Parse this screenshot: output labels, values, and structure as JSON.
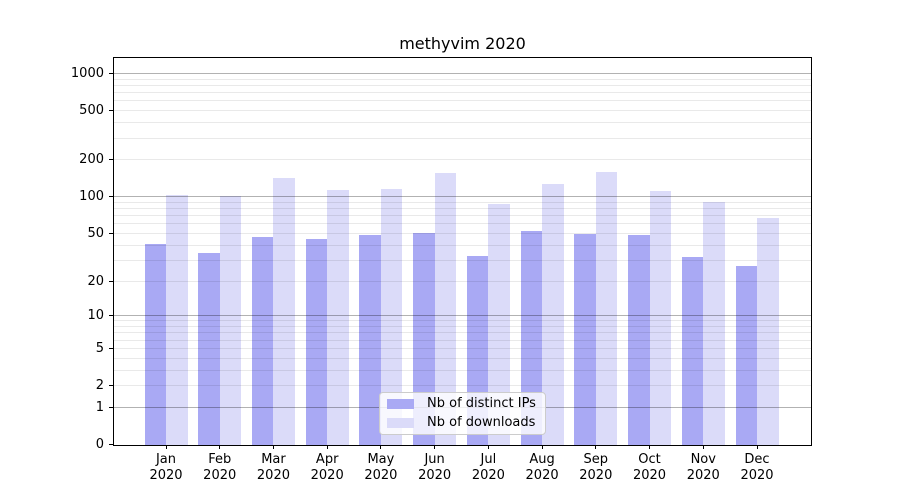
{
  "chart_data": {
    "type": "bar",
    "title": "methyvim 2020",
    "categories": [
      "Jan",
      "Feb",
      "Mar",
      "Apr",
      "May",
      "Jun",
      "Jul",
      "Aug",
      "Sep",
      "Oct",
      "Nov",
      "Dec"
    ],
    "year": "2020",
    "series": [
      {
        "name": "Nb of distinct IPs",
        "color": "#a9a9f4",
        "values": [
          41,
          35,
          47,
          45,
          49,
          51,
          33,
          53,
          50,
          49,
          32,
          27
        ]
      },
      {
        "name": "Nb of downloads",
        "color": "#dbdbf9",
        "values": [
          104,
          103,
          144,
          115,
          116,
          156,
          88,
          129,
          159,
          113,
          92,
          68
        ]
      }
    ],
    "yscale": "log1p",
    "yticks": [
      0,
      1,
      2,
      5,
      10,
      20,
      50,
      100,
      200,
      500,
      1000
    ],
    "ylim": [
      0,
      1350
    ],
    "xlabel": "",
    "ylabel": "",
    "grid": true,
    "legend_position": "lower center"
  },
  "colors": {
    "bar_distinct_ips": "#a9a9f4",
    "bar_downloads": "#dbdbf9",
    "grid_major": "#b3b3b3",
    "grid_minor": "#ebebeb",
    "axis": "#000000",
    "background": "#ffffff"
  }
}
